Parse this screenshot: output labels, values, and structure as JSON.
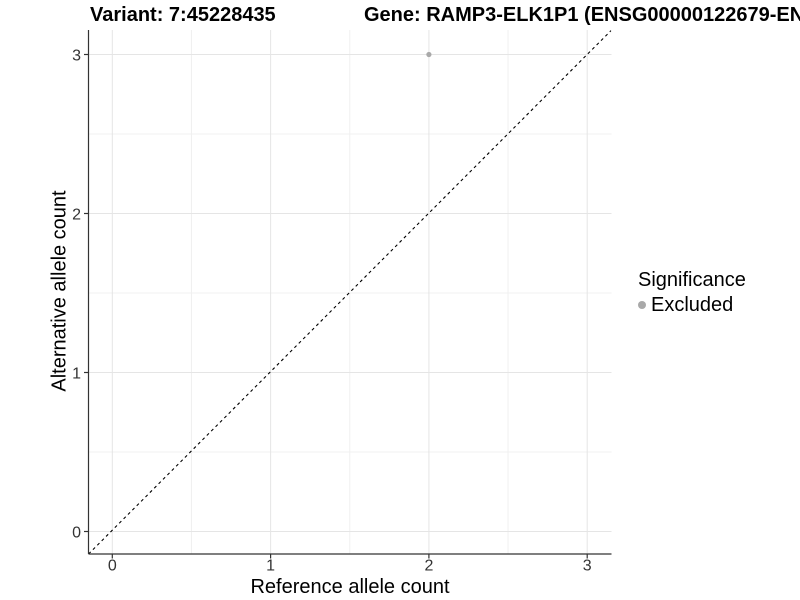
{
  "figure": {
    "title_left": "Variant: 7:45228435",
    "title_right": "Gene: RAMP3-ELK1P1 (ENSG00000122679-EN"
  },
  "legend": {
    "title": "Significance",
    "items": [
      {
        "label": "Excluded",
        "color": "#a9a9a9",
        "marker": "dot"
      }
    ]
  },
  "chart_data": {
    "type": "scatter",
    "title": "Variant: 7:45228435   Gene: RAMP3-ELK1P1 (ENSG00000122679-EN",
    "xlabel": "Reference allele count",
    "ylabel": "Alternative allele count",
    "xlim": [
      -0.15,
      3.15
    ],
    "ylim": [
      -0.15,
      3.15
    ],
    "x_ticks": [
      0,
      1,
      2,
      3
    ],
    "y_ticks": [
      0,
      1,
      2,
      3
    ],
    "grid": "major+minor",
    "legend_position": "right",
    "legend_title": "Significance",
    "series": [
      {
        "name": "Excluded",
        "color": "#a9a9a9",
        "marker": "circle",
        "point_radius_px": 2.6,
        "points": [
          [
            2,
            3
          ]
        ]
      }
    ],
    "reference_line": {
      "kind": "identity y=x",
      "style": "dashed",
      "color": "#000000",
      "from": [
        -0.15,
        -0.15
      ],
      "to": [
        3.15,
        3.15
      ]
    }
  },
  "style_colors": {
    "background": "#ffffff",
    "grid_major": "#e5e5e5",
    "grid_minor": "#f0f0f0",
    "axis_line": "#333333",
    "tick_mark": "#333333",
    "tick_label": "#333333",
    "point": "#a9a9a9",
    "ref_line": "#000000"
  }
}
